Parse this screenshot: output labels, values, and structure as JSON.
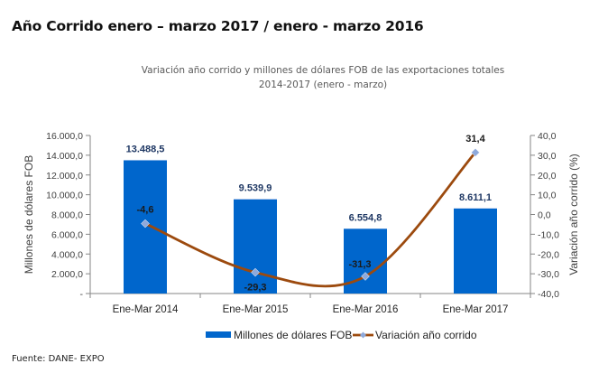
{
  "page": {
    "title": "Año Corrido enero – marzo 2017 / enero - marzo 2016",
    "source": "Fuente: DANE- EXPO"
  },
  "chart_data": {
    "type": "bar+line",
    "title": "Variación año corrido y millones de dólares FOB de las exportaciones totales",
    "subtitle": "2014-2017 (enero - marzo)",
    "categories": [
      "Ene-Mar 2014",
      "Ene-Mar 2015",
      "Ene-Mar 2016",
      "Ene-Mar 2017"
    ],
    "series": [
      {
        "name": "Millones de dólares FOB",
        "type": "bar",
        "axis": "left",
        "color": "#0066CC",
        "values": [
          13488.5,
          9539.9,
          6554.8,
          8611.1
        ],
        "labels": [
          "13.488,5",
          "9.539,9",
          "6.554,8",
          "8.611,1"
        ]
      },
      {
        "name": "Variación año corrido",
        "type": "line",
        "smooth": true,
        "axis": "right",
        "color": "#9C4A0E",
        "marker_color": "#8EA9DB",
        "values": [
          -4.6,
          -29.3,
          -31.3,
          31.4
        ],
        "labels": [
          "-4,6",
          "-29,3",
          "-31,3",
          "31,4"
        ]
      }
    ],
    "y_left": {
      "label": "Millones de dólares FOB",
      "ylim": [
        0,
        16000
      ],
      "ticks": [
        0,
        2000,
        4000,
        6000,
        8000,
        10000,
        12000,
        14000,
        16000
      ],
      "tick_labels": [
        "-",
        "2.000,0",
        "4.000,0",
        "6.000,0",
        "8.000,0",
        "10.000,0",
        "12.000,0",
        "14.000,0",
        "16.000,0"
      ]
    },
    "y_right": {
      "label": "Variación año corrido (%)",
      "ylim": [
        -40,
        40
      ],
      "ticks": [
        -40,
        -30,
        -20,
        -10,
        0,
        10,
        20,
        30,
        40
      ],
      "tick_labels": [
        "-40,0",
        "-30,0",
        "-20,0",
        "-10,0",
        "0,0",
        "10,0",
        "20,0",
        "30,0",
        "40,0"
      ]
    },
    "grid": false,
    "legend": "bottom"
  }
}
